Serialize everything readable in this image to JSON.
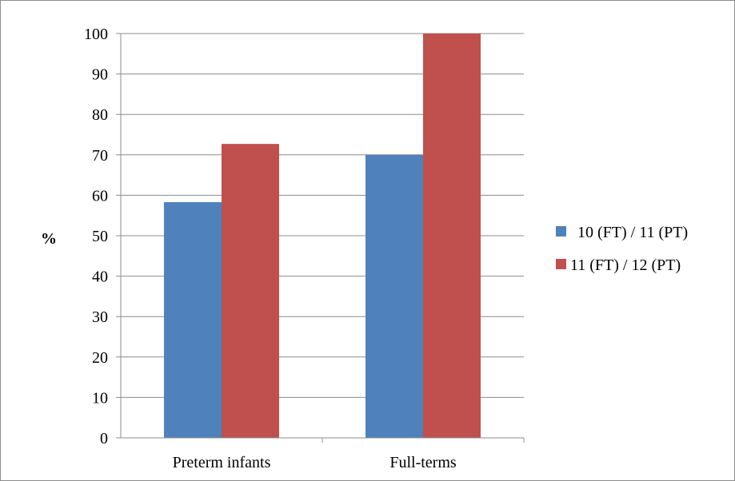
{
  "chart_data": {
    "type": "bar",
    "title": "",
    "xlabel": "",
    "ylabel": "%",
    "ylim": [
      0,
      100
    ],
    "yticks": [
      0,
      10,
      20,
      30,
      40,
      50,
      60,
      70,
      80,
      90,
      100
    ],
    "grid": true,
    "legend_position": "right",
    "categories": [
      "Preterm infants",
      "Full-terms"
    ],
    "series": [
      {
        "name": "10 (FT) / 11 (PT)",
        "color": "#4f81bd",
        "values": [
          58.3,
          70
        ]
      },
      {
        "name": "11 (FT) / 12 (PT)",
        "color": "#c0504d",
        "values": [
          72.7,
          100
        ]
      }
    ]
  }
}
